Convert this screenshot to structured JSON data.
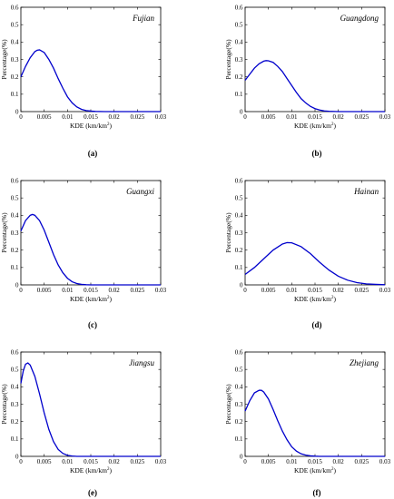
{
  "chart_data": [
    {
      "type": "line",
      "panel_label": "(a)",
      "annotation": "Fujian",
      "xlabel_main": "KDE (km/km",
      "xlabel_sup": "2",
      "xlabel_close": ")",
      "ylabel": "Percentage(%)",
      "xlim": [
        0,
        0.03
      ],
      "ylim": [
        0,
        0.6
      ],
      "xticks": [
        "0",
        "0.005",
        "0.01",
        "0.015",
        "0.02",
        "0.025",
        "0.03"
      ],
      "yticks": [
        "0",
        "0.1",
        "0.2",
        "0.3",
        "0.4",
        "0.5",
        "0.6"
      ],
      "series": [
        {
          "color": "#0000cc",
          "x": [
            0,
            0.001,
            0.002,
            0.003,
            0.0035,
            0.004,
            0.005,
            0.006,
            0.007,
            0.008,
            0.009,
            0.01,
            0.011,
            0.012,
            0.013,
            0.014,
            0.015,
            0.016,
            0.018,
            0.02,
            0.025,
            0.03
          ],
          "y": [
            0.2,
            0.26,
            0.31,
            0.345,
            0.353,
            0.355,
            0.34,
            0.3,
            0.25,
            0.19,
            0.135,
            0.085,
            0.05,
            0.027,
            0.013,
            0.006,
            0.003,
            0.001,
            0.0,
            0.0,
            0.0,
            0.0
          ]
        }
      ]
    },
    {
      "type": "line",
      "panel_label": "(b)",
      "annotation": "Guangdong",
      "xlabel_main": "KDE (km/km",
      "xlabel_sup": "2",
      "xlabel_close": ")",
      "ylabel": "Percentage(%)",
      "xlim": [
        0,
        0.03
      ],
      "ylim": [
        0,
        0.6
      ],
      "xticks": [
        "0",
        "0.005",
        "0.01",
        "0.015",
        "0.02",
        "0.025",
        "0.03"
      ],
      "yticks": [
        "0",
        "0.1",
        "0.2",
        "0.3",
        "0.4",
        "0.5",
        "0.6"
      ],
      "series": [
        {
          "color": "#0000cc",
          "x": [
            0,
            0.001,
            0.002,
            0.003,
            0.004,
            0.0045,
            0.005,
            0.006,
            0.007,
            0.008,
            0.009,
            0.01,
            0.011,
            0.012,
            0.013,
            0.014,
            0.015,
            0.016,
            0.017,
            0.018,
            0.02,
            0.025,
            0.03
          ],
          "y": [
            0.18,
            0.215,
            0.25,
            0.275,
            0.29,
            0.293,
            0.292,
            0.283,
            0.26,
            0.23,
            0.19,
            0.15,
            0.11,
            0.075,
            0.05,
            0.03,
            0.017,
            0.009,
            0.004,
            0.002,
            0.0,
            0.0,
            0.0
          ]
        }
      ]
    },
    {
      "type": "line",
      "panel_label": "(c)",
      "annotation": "Guangxi",
      "xlabel_main": "KDE (km/km",
      "xlabel_sup": "2",
      "xlabel_close": ")",
      "ylabel": "Percentage(%)",
      "xlim": [
        0,
        0.03
      ],
      "ylim": [
        0,
        0.6
      ],
      "xticks": [
        "0",
        "0.005",
        "0.01",
        "0.015",
        "0.02",
        "0.025",
        "0.03"
      ],
      "yticks": [
        "0",
        "0.1",
        "0.2",
        "0.3",
        "0.4",
        "0.5",
        "0.6"
      ],
      "series": [
        {
          "color": "#0000cc",
          "x": [
            0,
            0.001,
            0.002,
            0.0025,
            0.003,
            0.004,
            0.005,
            0.006,
            0.007,
            0.008,
            0.009,
            0.01,
            0.011,
            0.012,
            0.013,
            0.014,
            0.015,
            0.02,
            0.025,
            0.03
          ],
          "y": [
            0.31,
            0.37,
            0.4,
            0.405,
            0.4,
            0.37,
            0.315,
            0.245,
            0.175,
            0.115,
            0.07,
            0.038,
            0.018,
            0.008,
            0.003,
            0.001,
            0.0,
            0.0,
            0.0,
            0.0
          ]
        }
      ]
    },
    {
      "type": "line",
      "panel_label": "(d)",
      "annotation": "Hainan",
      "xlabel_main": "KDE (km/km",
      "xlabel_sup": "2",
      "xlabel_close": ")",
      "ylabel": "Percentage(%)",
      "xlim": [
        0,
        0.03
      ],
      "ylim": [
        0,
        0.6
      ],
      "xticks": [
        "0",
        "0.005",
        "0.01",
        "0.015",
        "0.02",
        "0.025",
        "0.03"
      ],
      "yticks": [
        "0",
        "0.1",
        "0.2",
        "0.3",
        "0.4",
        "0.5",
        "0.6"
      ],
      "series": [
        {
          "color": "#0000cc",
          "x": [
            0,
            0.002,
            0.004,
            0.006,
            0.008,
            0.009,
            0.01,
            0.012,
            0.014,
            0.016,
            0.018,
            0.02,
            0.022,
            0.024,
            0.026,
            0.028,
            0.03
          ],
          "y": [
            0.06,
            0.1,
            0.15,
            0.2,
            0.235,
            0.243,
            0.242,
            0.22,
            0.18,
            0.13,
            0.085,
            0.05,
            0.027,
            0.013,
            0.006,
            0.003,
            0.001
          ]
        }
      ]
    },
    {
      "type": "line",
      "panel_label": "(e)",
      "annotation": "Jiangsu",
      "xlabel_main": "KDE (km/km",
      "xlabel_sup": "2",
      "xlabel_close": ")",
      "ylabel": "Percentage(%)",
      "xlim": [
        0,
        0.03
      ],
      "ylim": [
        0,
        0.6
      ],
      "xticks": [
        "0",
        "0.005",
        "0.01",
        "0.015",
        "0.02",
        "0.025",
        "0.03"
      ],
      "yticks": [
        "0",
        "0.1",
        "0.2",
        "0.3",
        "0.4",
        "0.5",
        "0.6"
      ],
      "series": [
        {
          "color": "#0000cc",
          "x": [
            0,
            0.0005,
            0.001,
            0.0015,
            0.002,
            0.003,
            0.004,
            0.005,
            0.006,
            0.007,
            0.008,
            0.009,
            0.01,
            0.011,
            0.012,
            0.015,
            0.02,
            0.025,
            0.03
          ],
          "y": [
            0.42,
            0.49,
            0.53,
            0.537,
            0.525,
            0.46,
            0.36,
            0.25,
            0.155,
            0.085,
            0.04,
            0.017,
            0.006,
            0.002,
            0.0,
            0.0,
            0.0,
            0.0,
            0.0
          ]
        }
      ]
    },
    {
      "type": "line",
      "panel_label": "(f)",
      "annotation": "Zhejiang",
      "xlabel_main": "KDE (km/km",
      "xlabel_sup": "2",
      "xlabel_close": ")",
      "ylabel": "Percentage(%)",
      "xlim": [
        0,
        0.03
      ],
      "ylim": [
        0,
        0.6
      ],
      "xticks": [
        "0",
        "0.005",
        "0.01",
        "0.015",
        "0.02",
        "0.025",
        "0.03"
      ],
      "yticks": [
        "0",
        "0.1",
        "0.2",
        "0.3",
        "0.4",
        "0.5",
        "0.6"
      ],
      "series": [
        {
          "color": "#0000cc",
          "x": [
            0,
            0.001,
            0.002,
            0.003,
            0.0035,
            0.004,
            0.005,
            0.006,
            0.007,
            0.008,
            0.009,
            0.01,
            0.011,
            0.012,
            0.013,
            0.014,
            0.015,
            0.016,
            0.018,
            0.02,
            0.025,
            0.03
          ],
          "y": [
            0.26,
            0.32,
            0.365,
            0.38,
            0.38,
            0.37,
            0.33,
            0.27,
            0.205,
            0.145,
            0.095,
            0.055,
            0.03,
            0.015,
            0.007,
            0.003,
            0.001,
            0.0,
            0.0,
            0.0,
            0.0,
            0.0
          ]
        }
      ]
    }
  ]
}
